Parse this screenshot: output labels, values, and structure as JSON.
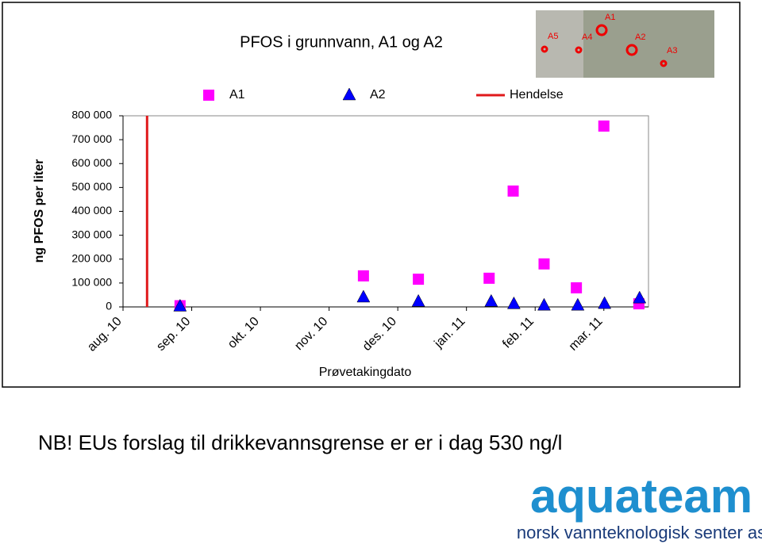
{
  "chart_data": {
    "type": "scatter",
    "title": "PFOS i grunnvann, A1 og A2",
    "ylabel": "ng PFOS per liter",
    "xlabel": "Prøvetakingdato",
    "xlim": [
      0,
      7.65
    ],
    "xticks": [
      {
        "value": 0,
        "label": "aug. 10"
      },
      {
        "value": 1,
        "label": "sep. 10"
      },
      {
        "value": 2,
        "label": "okt. 10"
      },
      {
        "value": 3,
        "label": "nov. 10"
      },
      {
        "value": 4,
        "label": "des. 10"
      },
      {
        "value": 5,
        "label": "jan. 11"
      },
      {
        "value": 6,
        "label": "feb. 11"
      },
      {
        "value": 7,
        "label": "mar. 11"
      }
    ],
    "ylim": [
      0,
      800000
    ],
    "yticks": [
      0,
      {
        "value": 100000,
        "label": "100 000"
      },
      {
        "value": 200000,
        "label": "200 000"
      },
      {
        "value": 300000,
        "label": "300 000"
      },
      {
        "value": 400000,
        "label": "400 000"
      },
      {
        "value": 500000,
        "label": "500 000"
      },
      {
        "value": 600000,
        "label": "600 000"
      },
      {
        "value": 700000,
        "label": "700 000"
      },
      {
        "value": 800000,
        "label": "800 000"
      }
    ],
    "series": [
      {
        "name": "A1",
        "color": "#ff00ff",
        "marker": "square",
        "x": [
          0.83,
          3.5,
          4.3,
          5.33,
          5.68,
          6.13,
          6.6,
          7.0,
          7.51
        ],
        "values": [
          5000,
          130000,
          116000,
          120000,
          485000,
          180000,
          80000,
          757000,
          13000
        ]
      },
      {
        "name": "A2",
        "color": "#0000ff",
        "marker": "triangle",
        "x": [
          0.83,
          3.5,
          4.3,
          5.36,
          5.69,
          6.13,
          6.62,
          7.01,
          7.52
        ],
        "values": [
          2000,
          40000,
          22000,
          22000,
          12000,
          6000,
          6000,
          13000,
          36000
        ]
      }
    ],
    "event": {
      "name": "Hendelse",
      "color": "#e0191b",
      "x": 0.35
    }
  },
  "map": {
    "labels": [
      "A1",
      "A2",
      "A3",
      "A4",
      "A5"
    ]
  },
  "note": "NB! EUs forslag til drikkevannsgrense er er i dag 530 ng/l",
  "logo": {
    "name": "aquateam",
    "tagline": "norsk vannteknologisk senter as"
  }
}
